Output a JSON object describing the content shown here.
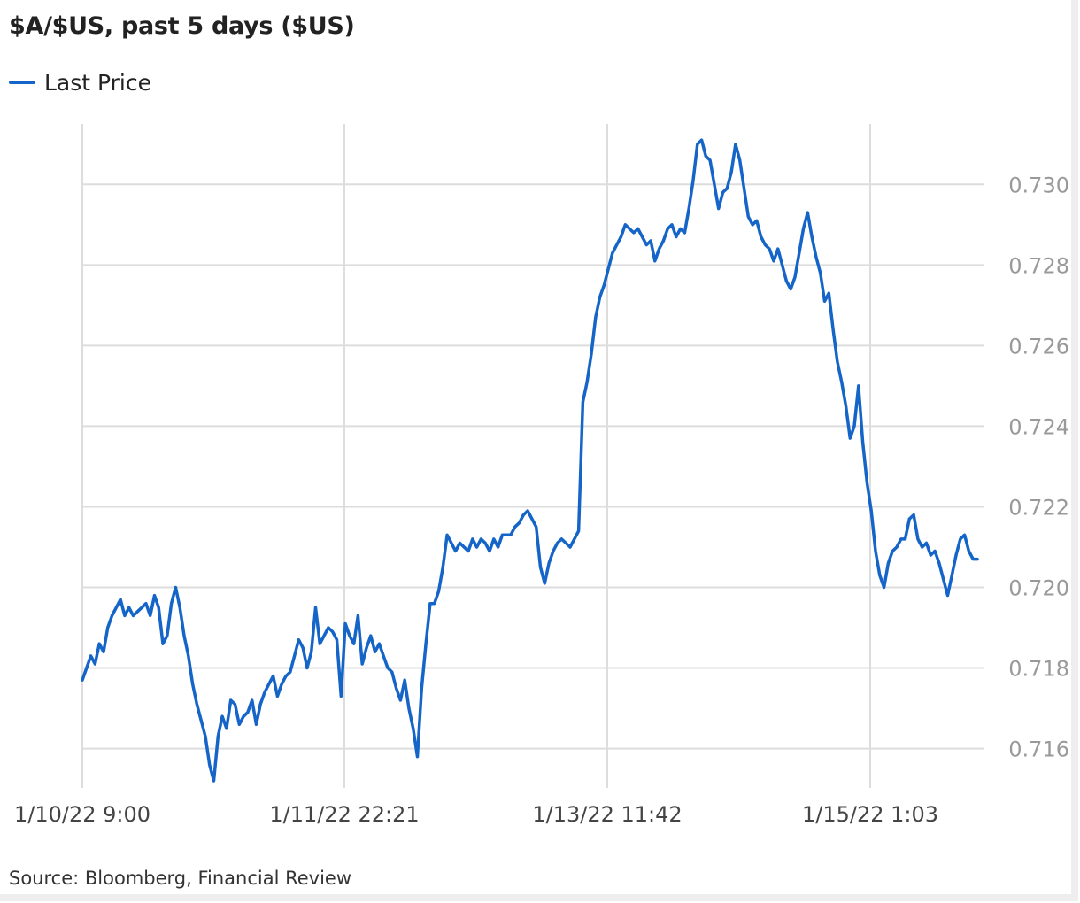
{
  "chart_data": {
    "type": "line",
    "title": "$A/$US, past 5 days ($US)",
    "source": "Source: Bloomberg, Financial Review",
    "xlabel": "",
    "ylabel": "",
    "x_ticks": [
      "1/10/22 9:00",
      "1/11/22 22:21",
      "1/13/22 11:42",
      "1/15/22 1:03"
    ],
    "y_ticks": [
      "0.716",
      "0.718",
      "0.720",
      "0.722",
      "0.724",
      "0.726",
      "0.728",
      "0.730"
    ],
    "ylim": [
      0.7152,
      0.7315
    ],
    "grid": true,
    "legend": "top-left",
    "colors": {
      "line": "#1565c8",
      "grid": "#dddddd",
      "tick_text": "#999999"
    },
    "series": [
      {
        "name": "Last Price",
        "x_start": "1/10/22 9:00",
        "x_end": "1/16/22 5:00",
        "values": [
          0.7177,
          0.718,
          0.7183,
          0.7181,
          0.7186,
          0.7184,
          0.719,
          0.7193,
          0.7195,
          0.7197,
          0.7193,
          0.7195,
          0.7193,
          0.7194,
          0.7195,
          0.7196,
          0.7193,
          0.7198,
          0.7195,
          0.7186,
          0.7188,
          0.7196,
          0.72,
          0.7195,
          0.7188,
          0.7183,
          0.7176,
          0.7171,
          0.7167,
          0.7163,
          0.7156,
          0.7152,
          0.7163,
          0.7168,
          0.7165,
          0.7172,
          0.7171,
          0.7166,
          0.7168,
          0.7169,
          0.7172,
          0.7166,
          0.7171,
          0.7174,
          0.7176,
          0.7178,
          0.7173,
          0.7176,
          0.7178,
          0.7179,
          0.7183,
          0.7187,
          0.7185,
          0.718,
          0.7184,
          0.7195,
          0.7186,
          0.7188,
          0.719,
          0.7189,
          0.7187,
          0.7173,
          0.7191,
          0.7188,
          0.7186,
          0.7193,
          0.7181,
          0.7185,
          0.7188,
          0.7184,
          0.7186,
          0.7183,
          0.718,
          0.7179,
          0.7175,
          0.7172,
          0.7177,
          0.717,
          0.7165,
          0.7158,
          0.7175,
          0.7186,
          0.7196,
          0.7196,
          0.7199,
          0.7205,
          0.7213,
          0.7211,
          0.7209,
          0.7211,
          0.721,
          0.7209,
          0.7212,
          0.721,
          0.7212,
          0.7211,
          0.7209,
          0.7212,
          0.721,
          0.7213,
          0.7213,
          0.7213,
          0.7215,
          0.7216,
          0.7218,
          0.7219,
          0.7217,
          0.7215,
          0.7205,
          0.7201,
          0.7206,
          0.7209,
          0.7211,
          0.7212,
          0.7211,
          0.721,
          0.7212,
          0.7214,
          0.7246,
          0.7251,
          0.7258,
          0.7267,
          0.7272,
          0.7275,
          0.7279,
          0.7283,
          0.7285,
          0.7287,
          0.729,
          0.7289,
          0.7288,
          0.7289,
          0.7287,
          0.7285,
          0.7286,
          0.7281,
          0.7284,
          0.7286,
          0.7289,
          0.729,
          0.7287,
          0.7289,
          0.7288,
          0.7294,
          0.7301,
          0.731,
          0.7311,
          0.7307,
          0.7306,
          0.73,
          0.7294,
          0.7298,
          0.7299,
          0.7303,
          0.731,
          0.7306,
          0.7299,
          0.7292,
          0.729,
          0.7291,
          0.7287,
          0.7285,
          0.7284,
          0.7281,
          0.7284,
          0.728,
          0.7276,
          0.7274,
          0.7277,
          0.7283,
          0.7289,
          0.7293,
          0.7287,
          0.7282,
          0.7278,
          0.7271,
          0.7273,
          0.7264,
          0.7256,
          0.7251,
          0.7245,
          0.7237,
          0.724,
          0.725,
          0.7236,
          0.7226,
          0.7219,
          0.7209,
          0.7203,
          0.72,
          0.7206,
          0.7209,
          0.721,
          0.7212,
          0.7212,
          0.7217,
          0.7218,
          0.7212,
          0.721,
          0.7211,
          0.7208,
          0.7209,
          0.7206,
          0.7202,
          0.7198,
          0.7203,
          0.7208,
          0.7212,
          0.7213,
          0.7209,
          0.7207,
          0.7207
        ]
      }
    ]
  }
}
